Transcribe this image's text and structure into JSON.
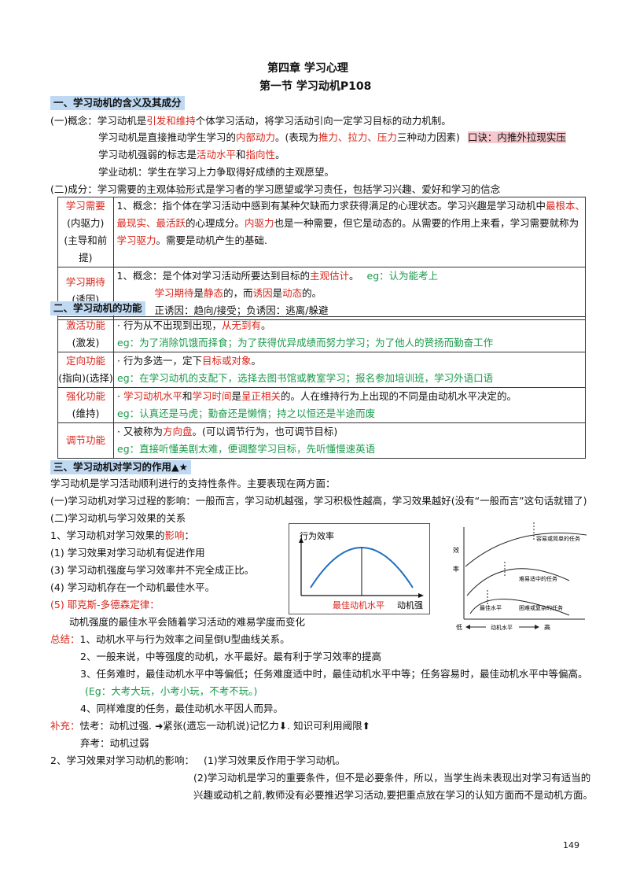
{
  "header": {
    "chapter_title": "第四章    学习心理",
    "section_title": "第一节   学习动机P108"
  },
  "s1": {
    "heading": "一、学习动机的含义及其成分",
    "l1_a": "(一)概念：学习动机是",
    "l1_b": "引发和维持",
    "l1_c": "个体学习活动，将学习活动引向一定学习目标的动力机制。",
    "l2_a": "学习动机是直接推动学生学习的",
    "l2_b": "内部动力",
    "l2_c": "。(表现为",
    "l2_d": "推力、拉力、压力",
    "l2_e": "三种动力因素)",
    "l2_f": "口诀：内推外拉现实压",
    "l3_a": "学习动机强弱的标志是",
    "l3_b": "活动水平",
    "l3_c": "和",
    "l3_d": "指向性",
    "l3_e": "。",
    "l4": "学业动机：学生在学习上力争取得好成绩的主观愿望。",
    "l5": "(二)成分：学习需要的主观体验形式是学习者的学习愿望或学习责任，包括学习兴趣、爱好和学习的信念"
  },
  "table1": {
    "r1_name": "学习需要",
    "r1_sub1": "(内驱力)",
    "r1_sub2": "(主导和前提)",
    "r1_l1_a": "1、概念：指个体在学习活动中感到有某种欠缺而力求获得满足的心理状态。学习兴趣是学习动机中",
    "r1_l1_b": "最根本、",
    "r1_l2_a": "最现实、最活跃",
    "r1_l2_b": "的心理成分。",
    "r1_l2_c": "内驱力",
    "r1_l2_d": "也是一种需要，但它是动态的。从需要的作用上来看，学习需要就称为",
    "r1_l3_a": "学习驱力",
    "r1_l3_b": "。需要是动机产生的基础.",
    "r2_name": "学习期待",
    "r2_sub": "(诱因)",
    "r2_l1_a": "1、概念：是个体对学习活动所要达到目标的",
    "r2_l1_b": "主观估计",
    "r2_l1_c": "。",
    "r2_l1_d": "eg：认为能考上",
    "r2_l2_a": "学习期待",
    "r2_l2_b": "是",
    "r2_l2_c": "静态",
    "r2_l2_d": "的，而",
    "r2_l2_e": "诱因",
    "r2_l2_f": "是",
    "r2_l2_g": "动态",
    "r2_l2_h": "的。",
    "r2_l3": "正诱因：趋向/接受；负诱因：逃离/躲避"
  },
  "s2": {
    "heading": "二、学习动机的功能"
  },
  "table2": [
    {
      "name": "激活功能",
      "sub": "(激发)",
      "a1": "· 行为从不出现到出现，",
      "a2": "从无到有",
      "a3": "。",
      "eg": "eg：为了消除饥饿而择食；为了获得优异成绩而努力学习；为了他人的赞扬而勤奋工作"
    },
    {
      "name": "定向功能",
      "sub": "(指向)(选择)",
      "a1": "· 行为多选一，定下",
      "a2": "目标或对象",
      "a3": "。",
      "eg": "eg：在学习动机的支配下，选择去图书馆或教室学习；报名参加培训班，学习外语口语"
    },
    {
      "name": "强化功能",
      "sub": "(维持)",
      "a1": "· ",
      "a2": "学习动机水平",
      "a3": "和",
      "a4": "学习时间",
      "a5": "是",
      "a6": "呈正相关",
      "a7": "的。人在维持行为上出现的不同是由动机水平决定的。",
      "eg": "eg：认真还是马虎；勤奋还是懒惰；持之以恒还是半途而废"
    },
    {
      "name": "调节功能",
      "sub": "",
      "a1": "· 又被称为",
      "a2": "方向盘",
      "a3": "。(可以调节行为，也可调节目标)",
      "eg": "eg：直接听懂美剧太难，便调整学习目标，先听懂慢速英语"
    }
  ],
  "s3": {
    "heading": "三、学习动机对学习的作用▲★",
    "p1": "学习动机是学习活动顺利进行的支持性条件。主要表现在两方面：",
    "p2": "(一)学习动机对学习过程的影响：一般而言，学习动机越强，学习积极性越高，学习效果越好(没有“一般而言”这句话就错了)",
    "p3": "(二)学习动机与学习效果的关系",
    "p4_a": "1、学习动机对学习效果的",
    "p4_b": "影响",
    "p4_c": "：",
    "i1": "(1) 学习效果对学习动机有促进作用",
    "i2": "(3) 学习动机强度与学习效率并不完全成正比。",
    "i3": "(4) 学习动机存在一个动机最佳水平。",
    "i4": "(5) 耶克斯-多德森定律：",
    "i5": "动机强度的最佳水平会随着学习活动的难易学度而变化",
    "sum_label": "总结：",
    "sum1": "1、动机水平与行为效率之间呈倒U型曲线关系。",
    "sum2": "2、一般来说，中等强度的动机，水平最好。最有利于学习效率的提高",
    "sum3": "3、任务难时，最佳动机水平中等偏低；任务难度适中时，最佳动机水平中等；任务容易时，最佳动机水平中等偏高。",
    "sum_eg": "(Eg：大考大玩，小考小玩，不考不玩。)",
    "sum4": "4、同样难度的任务，最佳动机水平因人而异。",
    "sup_label": "补充：",
    "sup1": "怯考：动机过强. ➜紧张(遗忘一动机说)记忆力⬇. 知识可利用阈限⬆",
    "sup2": "弃考：动机过弱",
    "p5_a": "2、学习效果对学习动机的影响：",
    "p5_b": "(1)学习效果反作用于学习动机。",
    "p6": "(2)学习动机是学习的重要条件，但不是必要条件，所以，当学生尚未表现出对学习有适当的",
    "p7": "兴趣或动机之前,教师没有必要推迟学习活动,要把重点放在学习的认知方面而不是动机方面。"
  },
  "chart1": {
    "ylabel": "行为效率",
    "xlabel": "动机强",
    "peak_label": "最佳动机水平"
  },
  "chart2": {
    "ylabel_1": "效",
    "ylabel_2": "率",
    "curve1": "容易或简单的任务",
    "curve2": "难易适中的任务",
    "curve3": "困难或复杂的任务",
    "peak3": "最佳水平",
    "x_low": "低",
    "x_mid": "动机水平",
    "x_high": "高"
  },
  "footer": {
    "page": "149"
  },
  "colors": {
    "emphasis_red": "#d9261c",
    "example_green": "#1a9a4a",
    "heading_bg": "#bfd9f2",
    "mnemonic_bg": "#f6c9cf"
  }
}
